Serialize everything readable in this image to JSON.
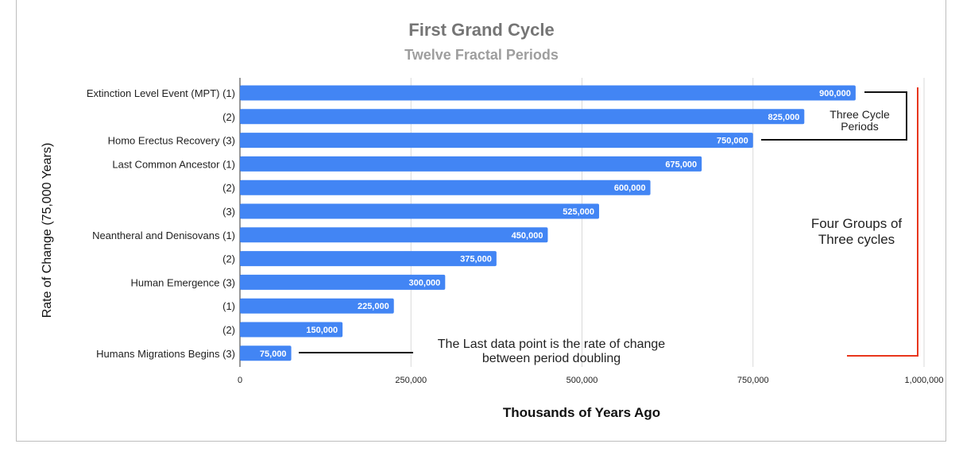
{
  "chart_data": {
    "type": "bar",
    "orientation": "horizontal",
    "title": "First Grand Cycle",
    "subtitle": "Twelve Fractal Periods",
    "xlabel": "Thousands of Years Ago",
    "ylabel": "Rate of Change (75,000 Years)",
    "categories": [
      "Extinction Level Event (MPT) (1)",
      "(2)",
      "Homo Erectus Recovery (3)",
      "Last Common Ancestor (1)",
      "(2)",
      "(3)",
      "Neantheral and Denisovans (1)",
      "(2)",
      "Human Emergence (3)",
      "(1)",
      "(2)",
      "Humans Migrations Begins (3)"
    ],
    "values": [
      900000,
      825000,
      750000,
      675000,
      600000,
      525000,
      450000,
      375000,
      300000,
      225000,
      150000,
      75000
    ],
    "value_labels": [
      "900,000",
      "825,000",
      "750,000",
      "675,000",
      "600,000",
      "525,000",
      "450,000",
      "375,000",
      "300,000",
      "225,000",
      "150,000",
      "75,000"
    ],
    "xlim": [
      0,
      1000000
    ],
    "x_ticks": [
      0,
      250000,
      500000,
      750000,
      1000000
    ],
    "x_tick_labels": [
      "0",
      "250,000",
      "500,000",
      "750,000",
      "1,000,000"
    ],
    "grid": true,
    "bar_color": "#4285f4",
    "annotations": {
      "three_cycle": "Three Cycle\nPeriods",
      "four_groups": "Four Groups of\nThree cycles",
      "last_point": "The Last data point is the rate of change\nbetween period doubling"
    }
  },
  "colors": {
    "bar": "#4285f4",
    "bracket_red": "#e8361c",
    "bracket_black": "#111111",
    "grid": "#d9d9d9"
  }
}
